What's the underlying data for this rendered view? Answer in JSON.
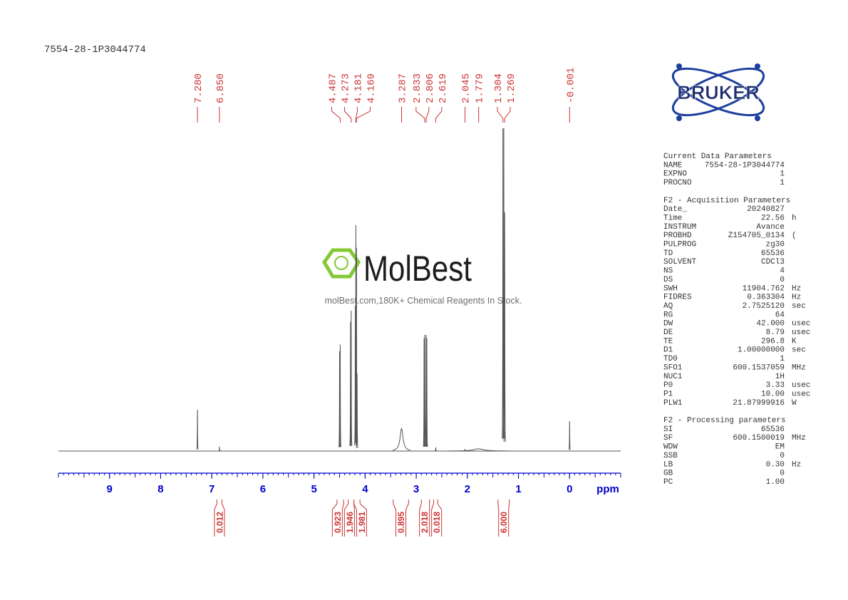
{
  "chart_data": {
    "type": "spectrum",
    "title": "7554-28-1P3044774",
    "x_label": "ppm",
    "xlim": [
      10,
      -1
    ],
    "xticks": [
      9,
      8,
      7,
      6,
      5,
      4,
      3,
      2,
      1,
      0
    ],
    "minor_step": 0.1,
    "ylim": [
      0,
      100
    ],
    "axis_color": "#0000cc",
    "trace_color": "#555555",
    "label_color": "#cc3333",
    "signals": [
      {
        "ppm": 7.28,
        "intensity": 12.8,
        "width": 0.003
      },
      {
        "ppm": 6.85,
        "intensity": 1.2,
        "width": 0.003
      },
      {
        "ppm": 4.499,
        "intensity": 31,
        "width": 0.003
      },
      {
        "ppm": 4.487,
        "intensity": 33,
        "width": 0.003
      },
      {
        "ppm": 4.285,
        "intensity": 40,
        "width": 0.003
      },
      {
        "ppm": 4.273,
        "intensity": 43.5,
        "width": 0.003
      },
      {
        "ppm": 4.192,
        "intensity": 45,
        "width": 0.003
      },
      {
        "ppm": 4.181,
        "intensity": 70,
        "width": 0.003
      },
      {
        "ppm": 4.169,
        "intensity": 63,
        "width": 0.003
      },
      {
        "ppm": 4.157,
        "intensity": 24,
        "width": 0.003
      },
      {
        "ppm": 3.287,
        "intensity": 7,
        "width": 0.035
      },
      {
        "ppm": 2.846,
        "intensity": 35,
        "width": 0.003
      },
      {
        "ppm": 2.833,
        "intensity": 36,
        "width": 0.003
      },
      {
        "ppm": 2.806,
        "intensity": 36,
        "width": 0.003
      },
      {
        "ppm": 2.793,
        "intensity": 35,
        "width": 0.003
      },
      {
        "ppm": 2.619,
        "intensity": 1,
        "width": 0.004
      },
      {
        "ppm": 2.045,
        "intensity": 0.5,
        "width": 0.01
      },
      {
        "ppm": 1.779,
        "intensity": 0.7,
        "width": 0.12
      },
      {
        "ppm": 1.304,
        "intensity": 100,
        "width": 0.003
      },
      {
        "ppm": 1.287,
        "intensity": 100,
        "width": 0.003
      },
      {
        "ppm": 1.269,
        "intensity": 74,
        "width": 0.003
      },
      {
        "ppm": -0.001,
        "intensity": 9.3,
        "width": 0.003
      }
    ],
    "peak_labels": [
      {
        "value": 7.28,
        "label": "7.280"
      },
      {
        "value": 6.85,
        "label": "6.850"
      },
      {
        "value": 4.487,
        "label": "4.487"
      },
      {
        "value": 4.273,
        "label": "4.273"
      },
      {
        "value": 4.181,
        "label": "4.181"
      },
      {
        "value": 4.169,
        "label": "4.169"
      },
      {
        "value": 3.287,
        "label": "3.287"
      },
      {
        "value": 2.833,
        "label": "2.833"
      },
      {
        "value": 2.806,
        "label": "2.806"
      },
      {
        "value": 2.619,
        "label": "2.619"
      },
      {
        "value": 2.045,
        "label": "2.045"
      },
      {
        "value": 1.779,
        "label": "1.779"
      },
      {
        "value": 1.304,
        "label": "1.304"
      },
      {
        "value": 1.269,
        "label": "1.269"
      },
      {
        "value": -0.001,
        "label": "-0.001"
      }
    ],
    "integrals": [
      {
        "value": 0.012,
        "range": [
          6.9,
          6.8
        ]
      },
      {
        "value": 0.923,
        "range": [
          4.55,
          4.42
        ]
      },
      {
        "value": 1.946,
        "range": [
          4.33,
          4.22
        ]
      },
      {
        "value": 1.981,
        "range": [
          4.22,
          4.1
        ]
      },
      {
        "value": 0.895,
        "range": [
          3.45,
          3.15
        ]
      },
      {
        "value": 2.018,
        "range": [
          2.9,
          2.74
        ]
      },
      {
        "value": 0.018,
        "range": [
          2.66,
          2.58
        ]
      },
      {
        "value": 6,
        "label": "6.000",
        "range": [
          1.4,
          1.18
        ]
      }
    ]
  },
  "watermark": {
    "brand": "MolBest",
    "tagline": "molBest.com,180K+ Chemical Reagents In Stock."
  },
  "logo": "BRUKER",
  "parameters": [
    {
      "title": "Current Data Parameters",
      "rows": [
        [
          "NAME",
          "7554-28-1P3044774"
        ],
        [
          "EXPNO",
          "1"
        ],
        [
          "PROCNO",
          "1"
        ]
      ]
    },
    {
      "title": "F2 - Acquisition Parameters",
      "rows": [
        [
          "Date_",
          "20240827"
        ],
        [
          "Time",
          "22.56",
          "h"
        ],
        [
          "INSTRUM",
          "Avance"
        ],
        [
          "PROBHD",
          "Z154705_0134",
          "("
        ],
        [
          "PULPROG",
          "zg30"
        ],
        [
          "TD",
          "65536"
        ],
        [
          "SOLVENT",
          "CDCl3"
        ],
        [
          "NS",
          "4"
        ],
        [
          "DS",
          "0"
        ],
        [
          "SWH",
          "11904.762",
          "Hz"
        ],
        [
          "FIDRES",
          "0.363304",
          "Hz"
        ],
        [
          "AQ",
          "2.7525120",
          "sec"
        ],
        [
          "RG",
          "64"
        ],
        [
          "DW",
          "42.000",
          "usec"
        ],
        [
          "DE",
          "8.79",
          "usec"
        ],
        [
          "TE",
          "296.8",
          "K"
        ],
        [
          "D1",
          "1.00000000",
          "sec"
        ],
        [
          "TD0",
          "1"
        ],
        [
          "SFO1",
          "600.1537059",
          "MHz"
        ],
        [
          "NUC1",
          "1H"
        ],
        [
          "P0",
          "3.33",
          "usec"
        ],
        [
          "P1",
          "10.00",
          "usec"
        ],
        [
          "PLW1",
          "21.87999916",
          "W"
        ]
      ]
    },
    {
      "title": "F2 - Processing parameters",
      "rows": [
        [
          "SI",
          "65536"
        ],
        [
          "SF",
          "600.1500019",
          "MHz"
        ],
        [
          "WDW",
          "EM"
        ],
        [
          "SSB",
          "0"
        ],
        [
          "LB",
          "0.30",
          "Hz"
        ],
        [
          "GB",
          "0"
        ],
        [
          "PC",
          "1.00"
        ]
      ]
    }
  ]
}
